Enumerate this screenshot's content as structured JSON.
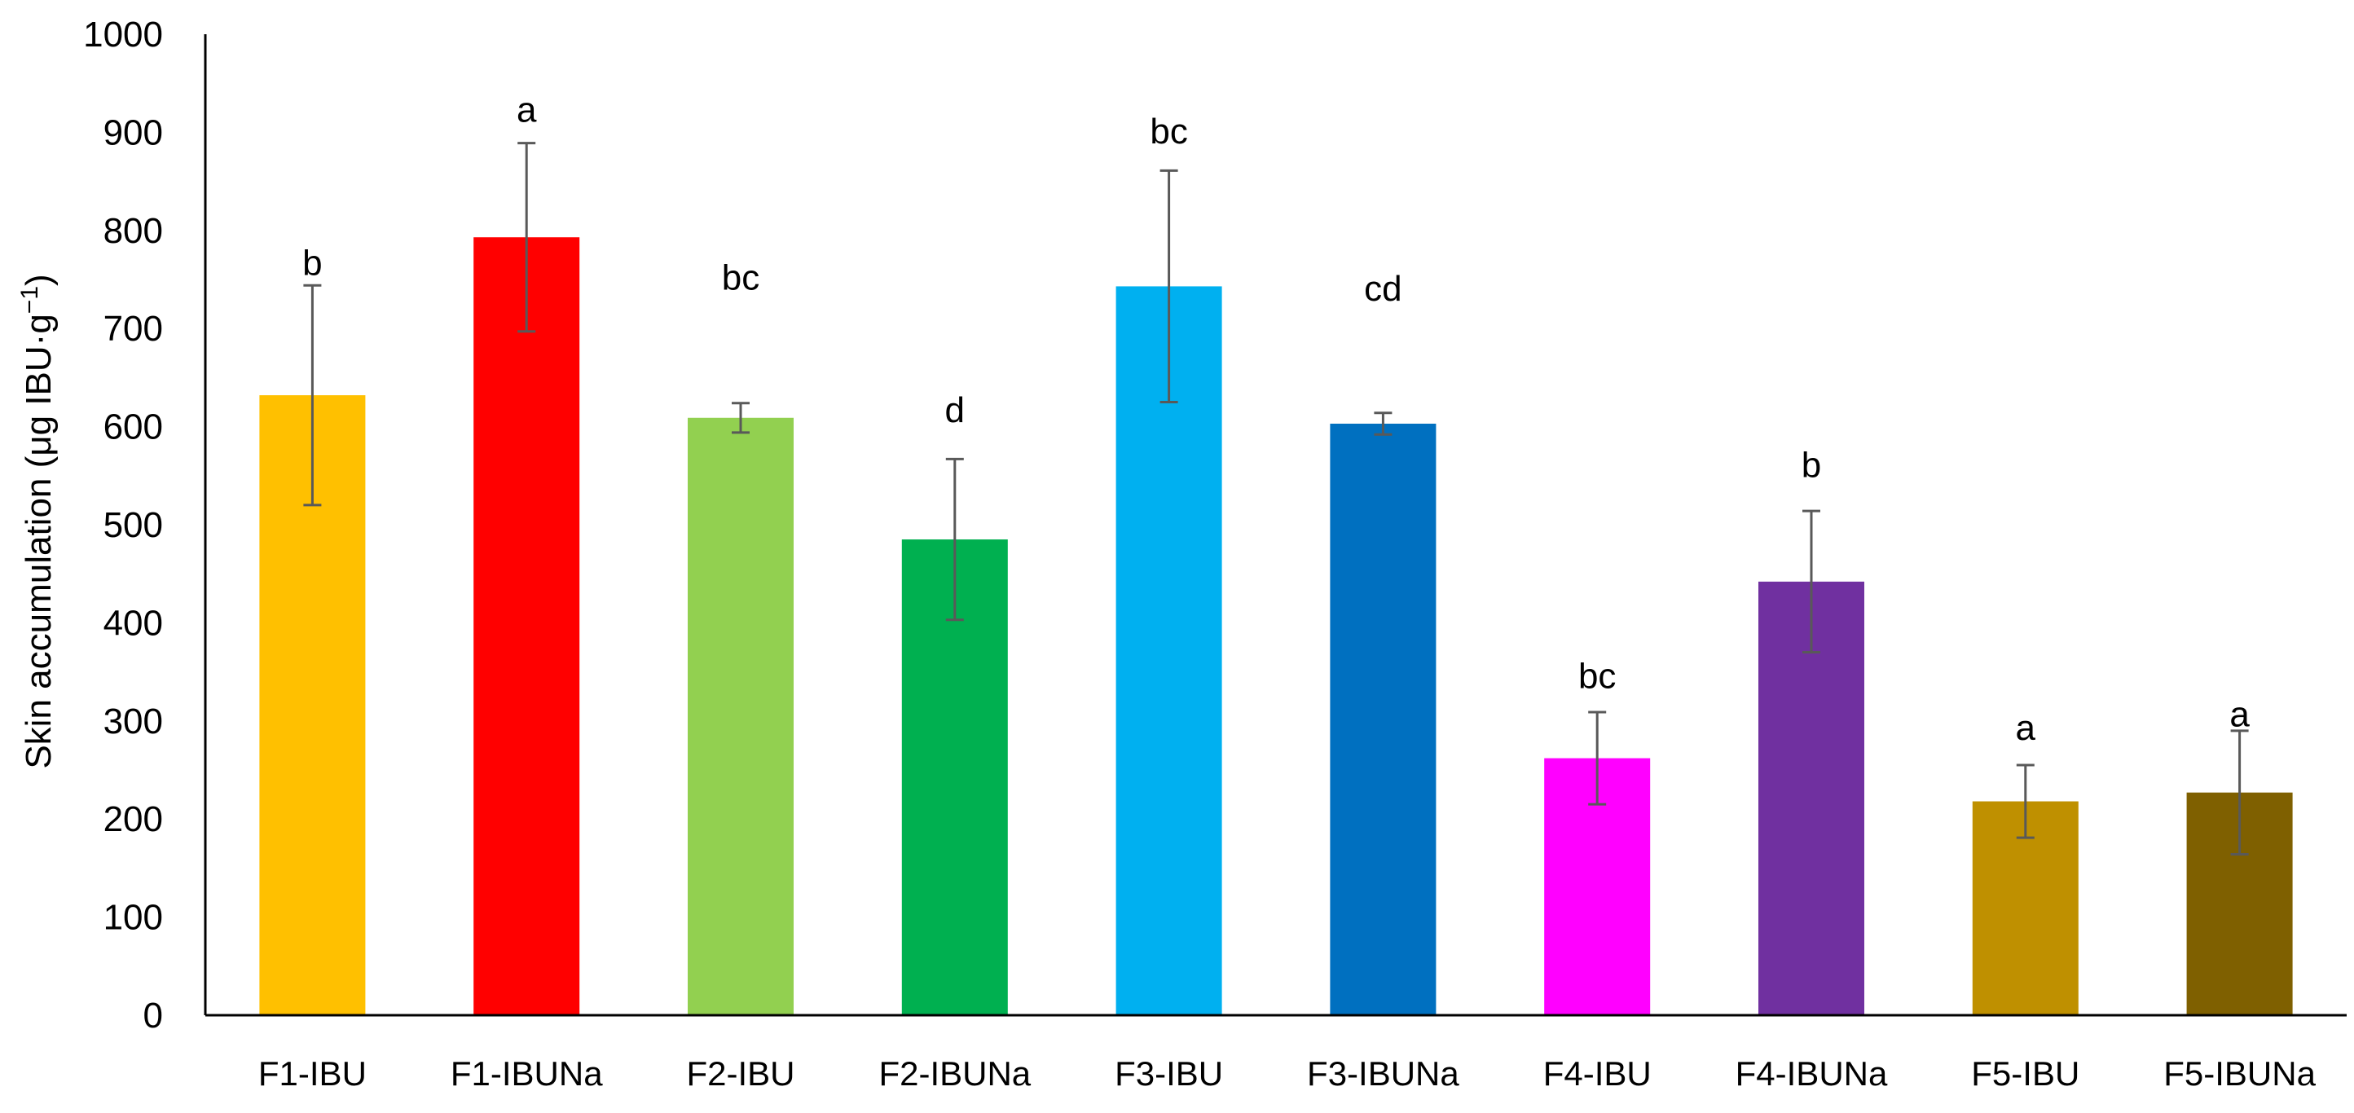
{
  "chart_data": {
    "type": "bar",
    "ylabel": "Skin accumulation (μg IBU·g",
    "ylabel_sup": "−1",
    "ylabel_close": ")",
    "ylim": [
      0,
      1000
    ],
    "yticks": [
      "0",
      "100",
      "200",
      "300",
      "400",
      "500",
      "600",
      "700",
      "800",
      "900",
      "1000"
    ],
    "grid": false,
    "categories": [
      "F1-IBU",
      "F1-IBUNa",
      "F2-IBU",
      "F2-IBUNa",
      "F3-IBU",
      "F3-IBUNa",
      "F4-IBU",
      "F4-IBUNa",
      "F5-IBU",
      "F5-IBUNa"
    ],
    "values": [
      632,
      793,
      609,
      485,
      743,
      603,
      262,
      442,
      218,
      227
    ],
    "errors": [
      112,
      96,
      15,
      82,
      118,
      11,
      47,
      72,
      37,
      63
    ],
    "significance": [
      "b",
      "a",
      "bc",
      "d",
      "bc",
      "cd",
      "bc",
      "b",
      "a",
      "a"
    ],
    "sig_positions": [
      767,
      923,
      752,
      617,
      901,
      741,
      346,
      561,
      293,
      307
    ],
    "colors": [
      "#FFC000",
      "#FF0000",
      "#92D050",
      "#00B050",
      "#00B0F0",
      "#0070C0",
      "#FF00FF",
      "#7030A0",
      "#BF9000",
      "#7F6000"
    ]
  }
}
